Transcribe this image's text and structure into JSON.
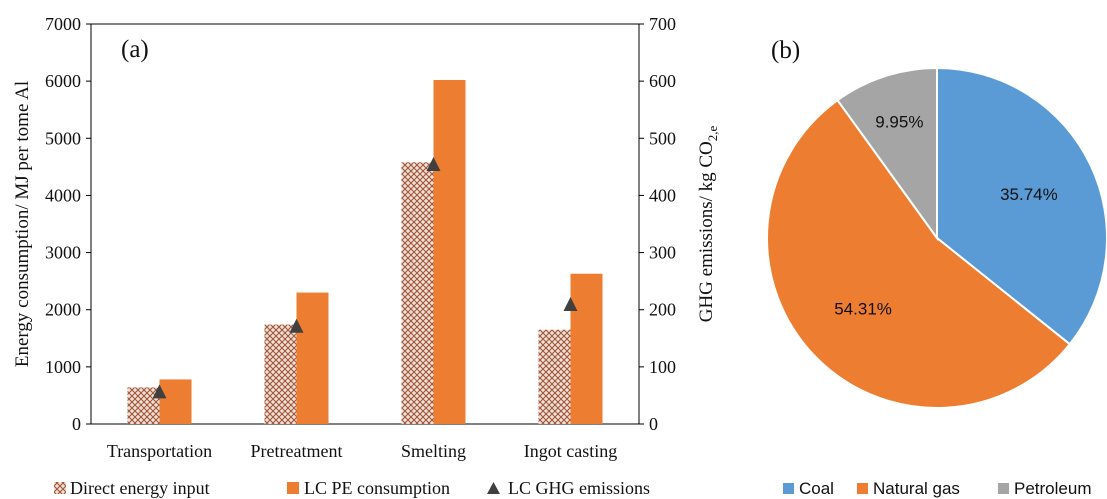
{
  "chart_data": [
    {
      "type": "bar",
      "panel_label": "(a)",
      "categories": [
        "Transportation",
        "Pretreatment",
        "Smelting",
        "Ingot casting"
      ],
      "series": [
        {
          "name": "Direct energy input",
          "axis": "left",
          "style": "hatched",
          "values": [
            640,
            1740,
            4580,
            1650
          ]
        },
        {
          "name": "LC PE consumption",
          "axis": "left",
          "style": "solid",
          "values": [
            780,
            2300,
            6020,
            2630
          ]
        },
        {
          "name": "LC GHG emissions",
          "axis": "right",
          "style": "triangle-marker",
          "values": [
            57,
            172,
            455,
            210
          ]
        }
      ],
      "ylabel": "Energy consumption/ MJ per tome Al",
      "ylabel_right_prefix": "GHG emissions/ kg CO",
      "ylabel_right_sub": "2,e",
      "ylim": [
        0,
        7000
      ],
      "ylim_right": [
        0,
        700
      ],
      "yticks": [
        "0",
        "1000",
        "2000",
        "3000",
        "4000",
        "5000",
        "6000",
        "7000"
      ],
      "yticks_right": [
        "0",
        "100",
        "200",
        "300",
        "400",
        "500",
        "600",
        "700"
      ],
      "grid": false,
      "legend_position": "bottom",
      "colors": {
        "direct": "#b9704a",
        "pe": "#ed7d31",
        "ghg": "#404040"
      }
    },
    {
      "type": "pie",
      "panel_label": "(b)",
      "labels": [
        "Coal",
        "Natural gas",
        "Petroleum"
      ],
      "values": [
        35.74,
        54.31,
        9.95
      ],
      "value_labels": [
        "35.74%",
        "54.31%",
        "9.95%"
      ],
      "colors": [
        "#5b9bd5",
        "#ed7d31",
        "#a5a5a5"
      ],
      "legend_position": "bottom"
    }
  ]
}
